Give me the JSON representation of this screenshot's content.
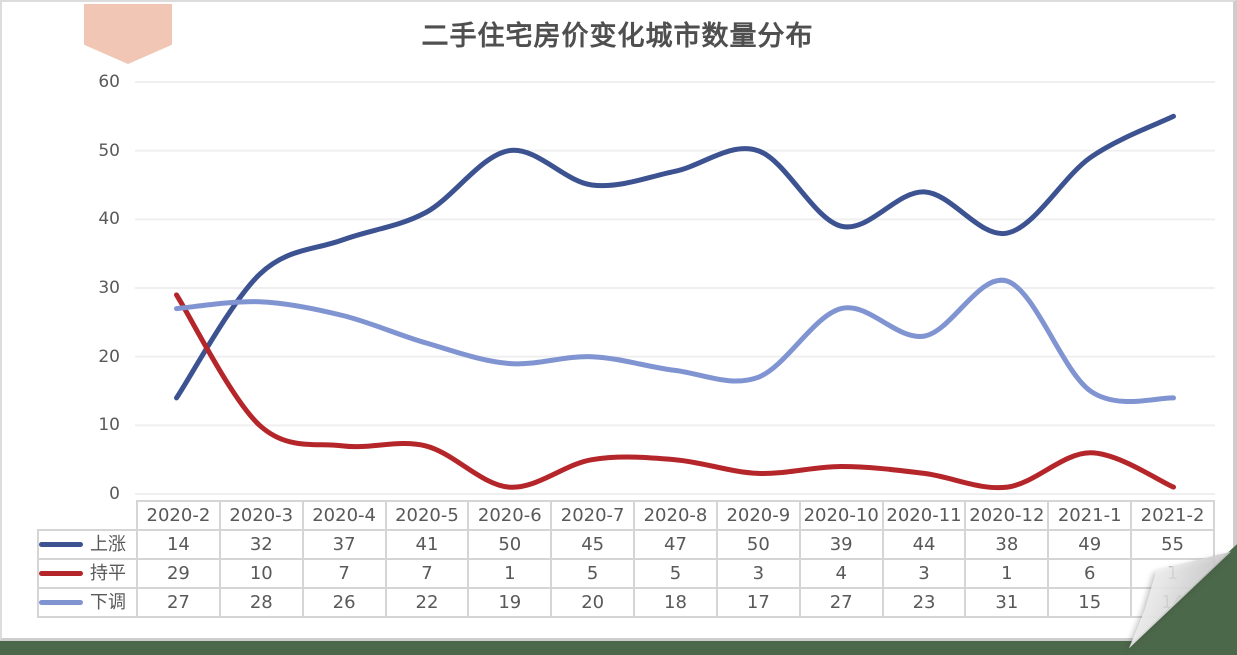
{
  "header": {
    "title": "二手住宅房价变化城市数量分布"
  },
  "colors": {
    "background_green": "#4c684a",
    "card_background": "#ffffff",
    "ribbon_peach": "#f1c6b4",
    "grid_line": "#efefef",
    "text_gray": "#595959",
    "title_gray": "#4f4f4f",
    "table_border": "#d5d5d5",
    "series_rise_blue": "#3c5291",
    "series_flat_red": "#b4262a",
    "series_down_lightblue": "#8094d2"
  },
  "chart_data": {
    "type": "line",
    "title": "二手住宅房价变化城市数量分布",
    "xlabel": "",
    "ylabel": "",
    "smooth": true,
    "grid": true,
    "markers": false,
    "legend_position": "table-left",
    "ylim": [
      0,
      60
    ],
    "yticks": [
      0,
      10,
      20,
      30,
      40,
      50,
      60
    ],
    "categories": [
      "2020-2",
      "2020-3",
      "2020-4",
      "2020-5",
      "2020-6",
      "2020-7",
      "2020-8",
      "2020-9",
      "2020-10",
      "2020-11",
      "2020-12",
      "2021-1",
      "2021-2"
    ],
    "series": [
      {
        "key": "rise",
        "name": "上涨",
        "color": "#3c5291",
        "values": [
          14,
          32,
          37,
          41,
          50,
          45,
          47,
          50,
          39,
          44,
          38,
          49,
          55
        ]
      },
      {
        "key": "flat",
        "name": "持平",
        "color": "#b4262a",
        "values": [
          29,
          10,
          7,
          7,
          1,
          5,
          5,
          3,
          4,
          3,
          1,
          6,
          1
        ]
      },
      {
        "key": "down",
        "name": "下调",
        "color": "#8094d2",
        "values": [
          27,
          28,
          26,
          22,
          19,
          20,
          18,
          17,
          27,
          23,
          31,
          15,
          14
        ]
      }
    ]
  }
}
